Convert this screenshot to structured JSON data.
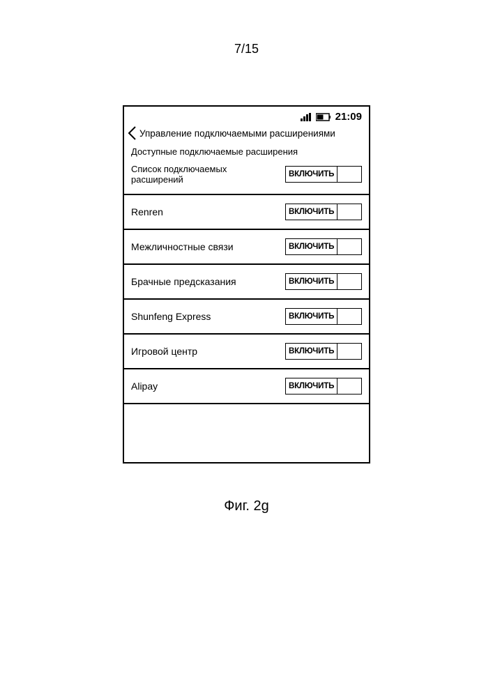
{
  "page_number": "7/15",
  "figure_caption": "Фиг. 2g",
  "status_bar": {
    "time": "21:09",
    "signal_color": "#000000",
    "battery_color": "#000000"
  },
  "header": {
    "title": "Управление подключаемыми расширениями"
  },
  "section_label": "Доступные подключаемые расширения",
  "toggle_on_label": "ВКЛЮЧИТЬ",
  "rows": [
    {
      "label": "Список подключаемых расширений",
      "two_line": true
    },
    {
      "label": "Renren",
      "two_line": false
    },
    {
      "label": "Межличностные связи",
      "two_line": false
    },
    {
      "label": "Брачные предсказания",
      "two_line": false
    },
    {
      "label": "Shunfeng Express",
      "two_line": false
    },
    {
      "label": "Игровой центр",
      "two_line": false
    },
    {
      "label": "Alipay",
      "two_line": false
    }
  ],
  "colors": {
    "border": "#000000",
    "background": "#ffffff",
    "text": "#000000"
  }
}
